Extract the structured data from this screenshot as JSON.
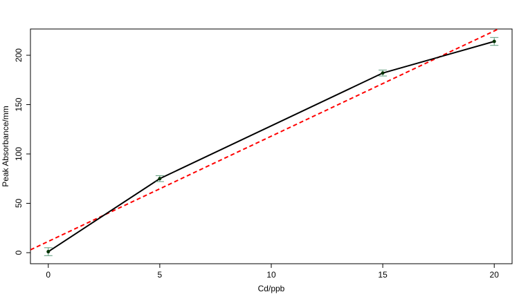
{
  "chart_data": {
    "type": "line",
    "x_label": "Cd/ppb",
    "y_label": "Peak Absorbance/mm",
    "x": [
      0,
      5,
      15,
      20
    ],
    "series": [
      {
        "color": "#000000",
        "marker_color": "#003300",
        "error_color": "#5a9a7a",
        "values": [
          1,
          75,
          182,
          214
        ],
        "errors": [
          4,
          3,
          3,
          4
        ]
      }
    ],
    "fit": {
      "intercept": 11.4,
      "slope": 10.66,
      "color": "#ff0000"
    },
    "xlim": [
      -0.8,
      20.8
    ],
    "xticks": [
      0,
      5,
      10,
      15,
      20
    ],
    "ylim": [
      -11.2,
      226.6
    ],
    "yticks": [
      0,
      50,
      100,
      150,
      200
    ],
    "grid": false
  }
}
